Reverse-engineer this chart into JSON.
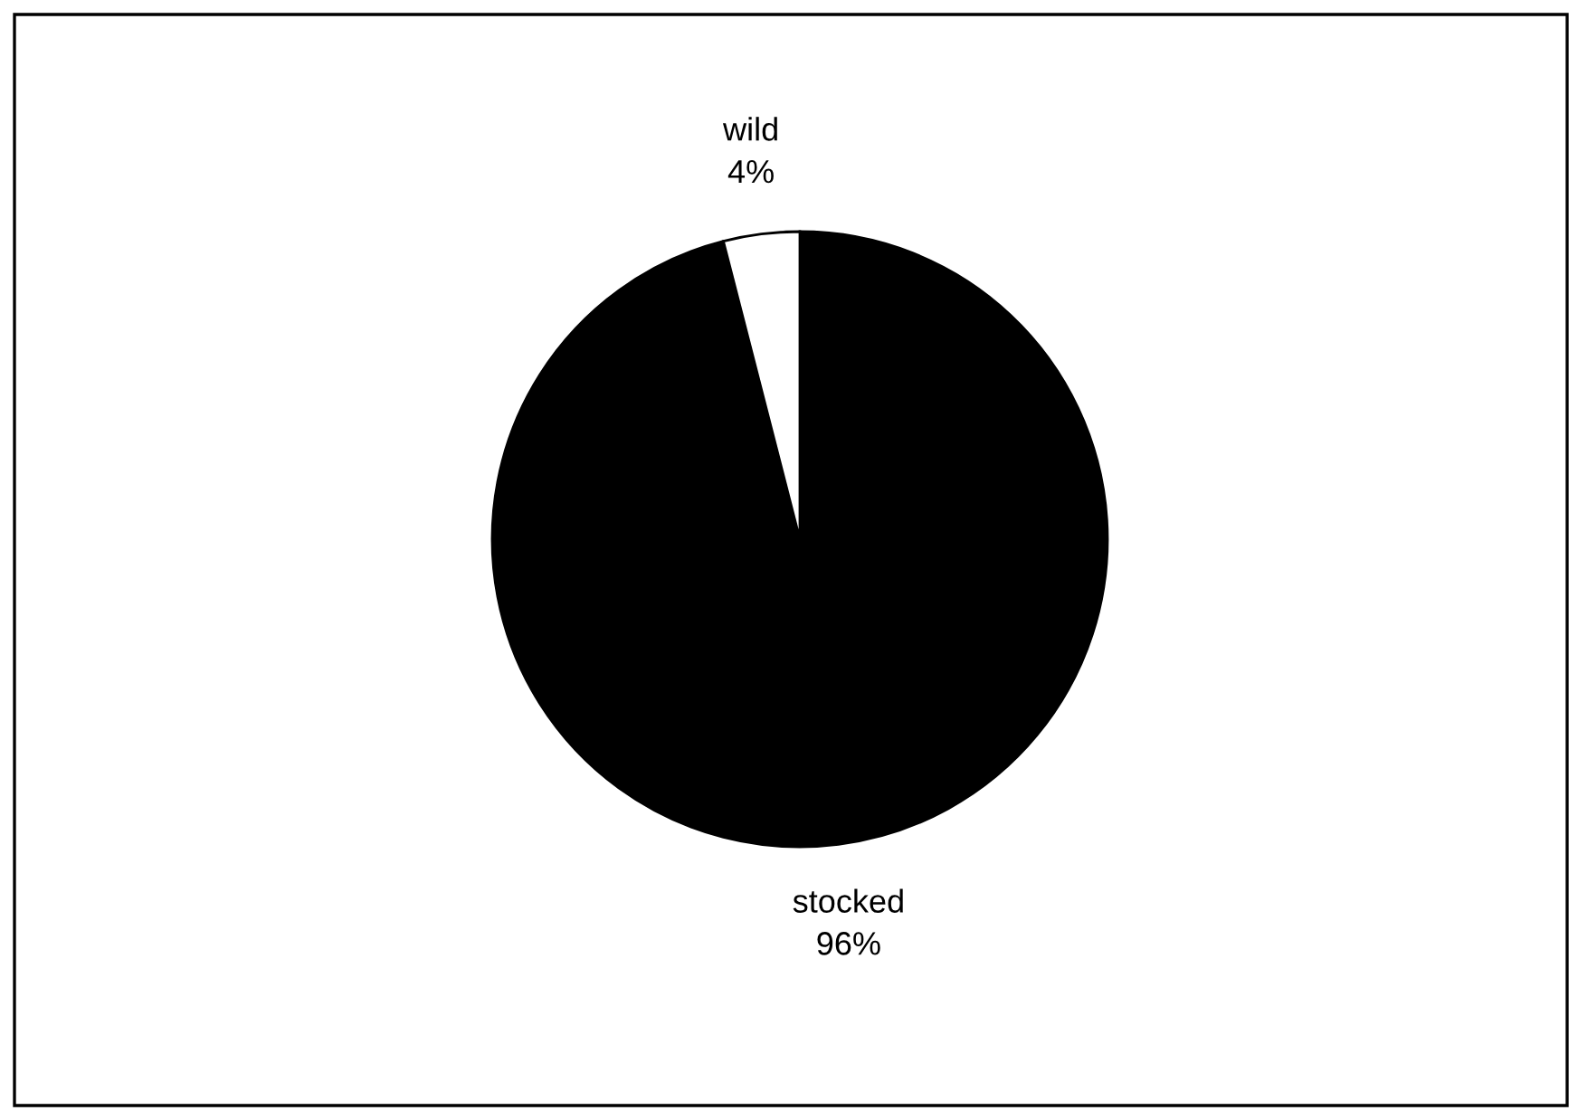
{
  "chart_data": {
    "type": "pie",
    "categories": [
      "stocked",
      "wild"
    ],
    "values": [
      96,
      4
    ],
    "colors": [
      "#000000",
      "#ffffff"
    ],
    "value_labels": [
      "96%",
      "4%"
    ],
    "legend": false
  }
}
